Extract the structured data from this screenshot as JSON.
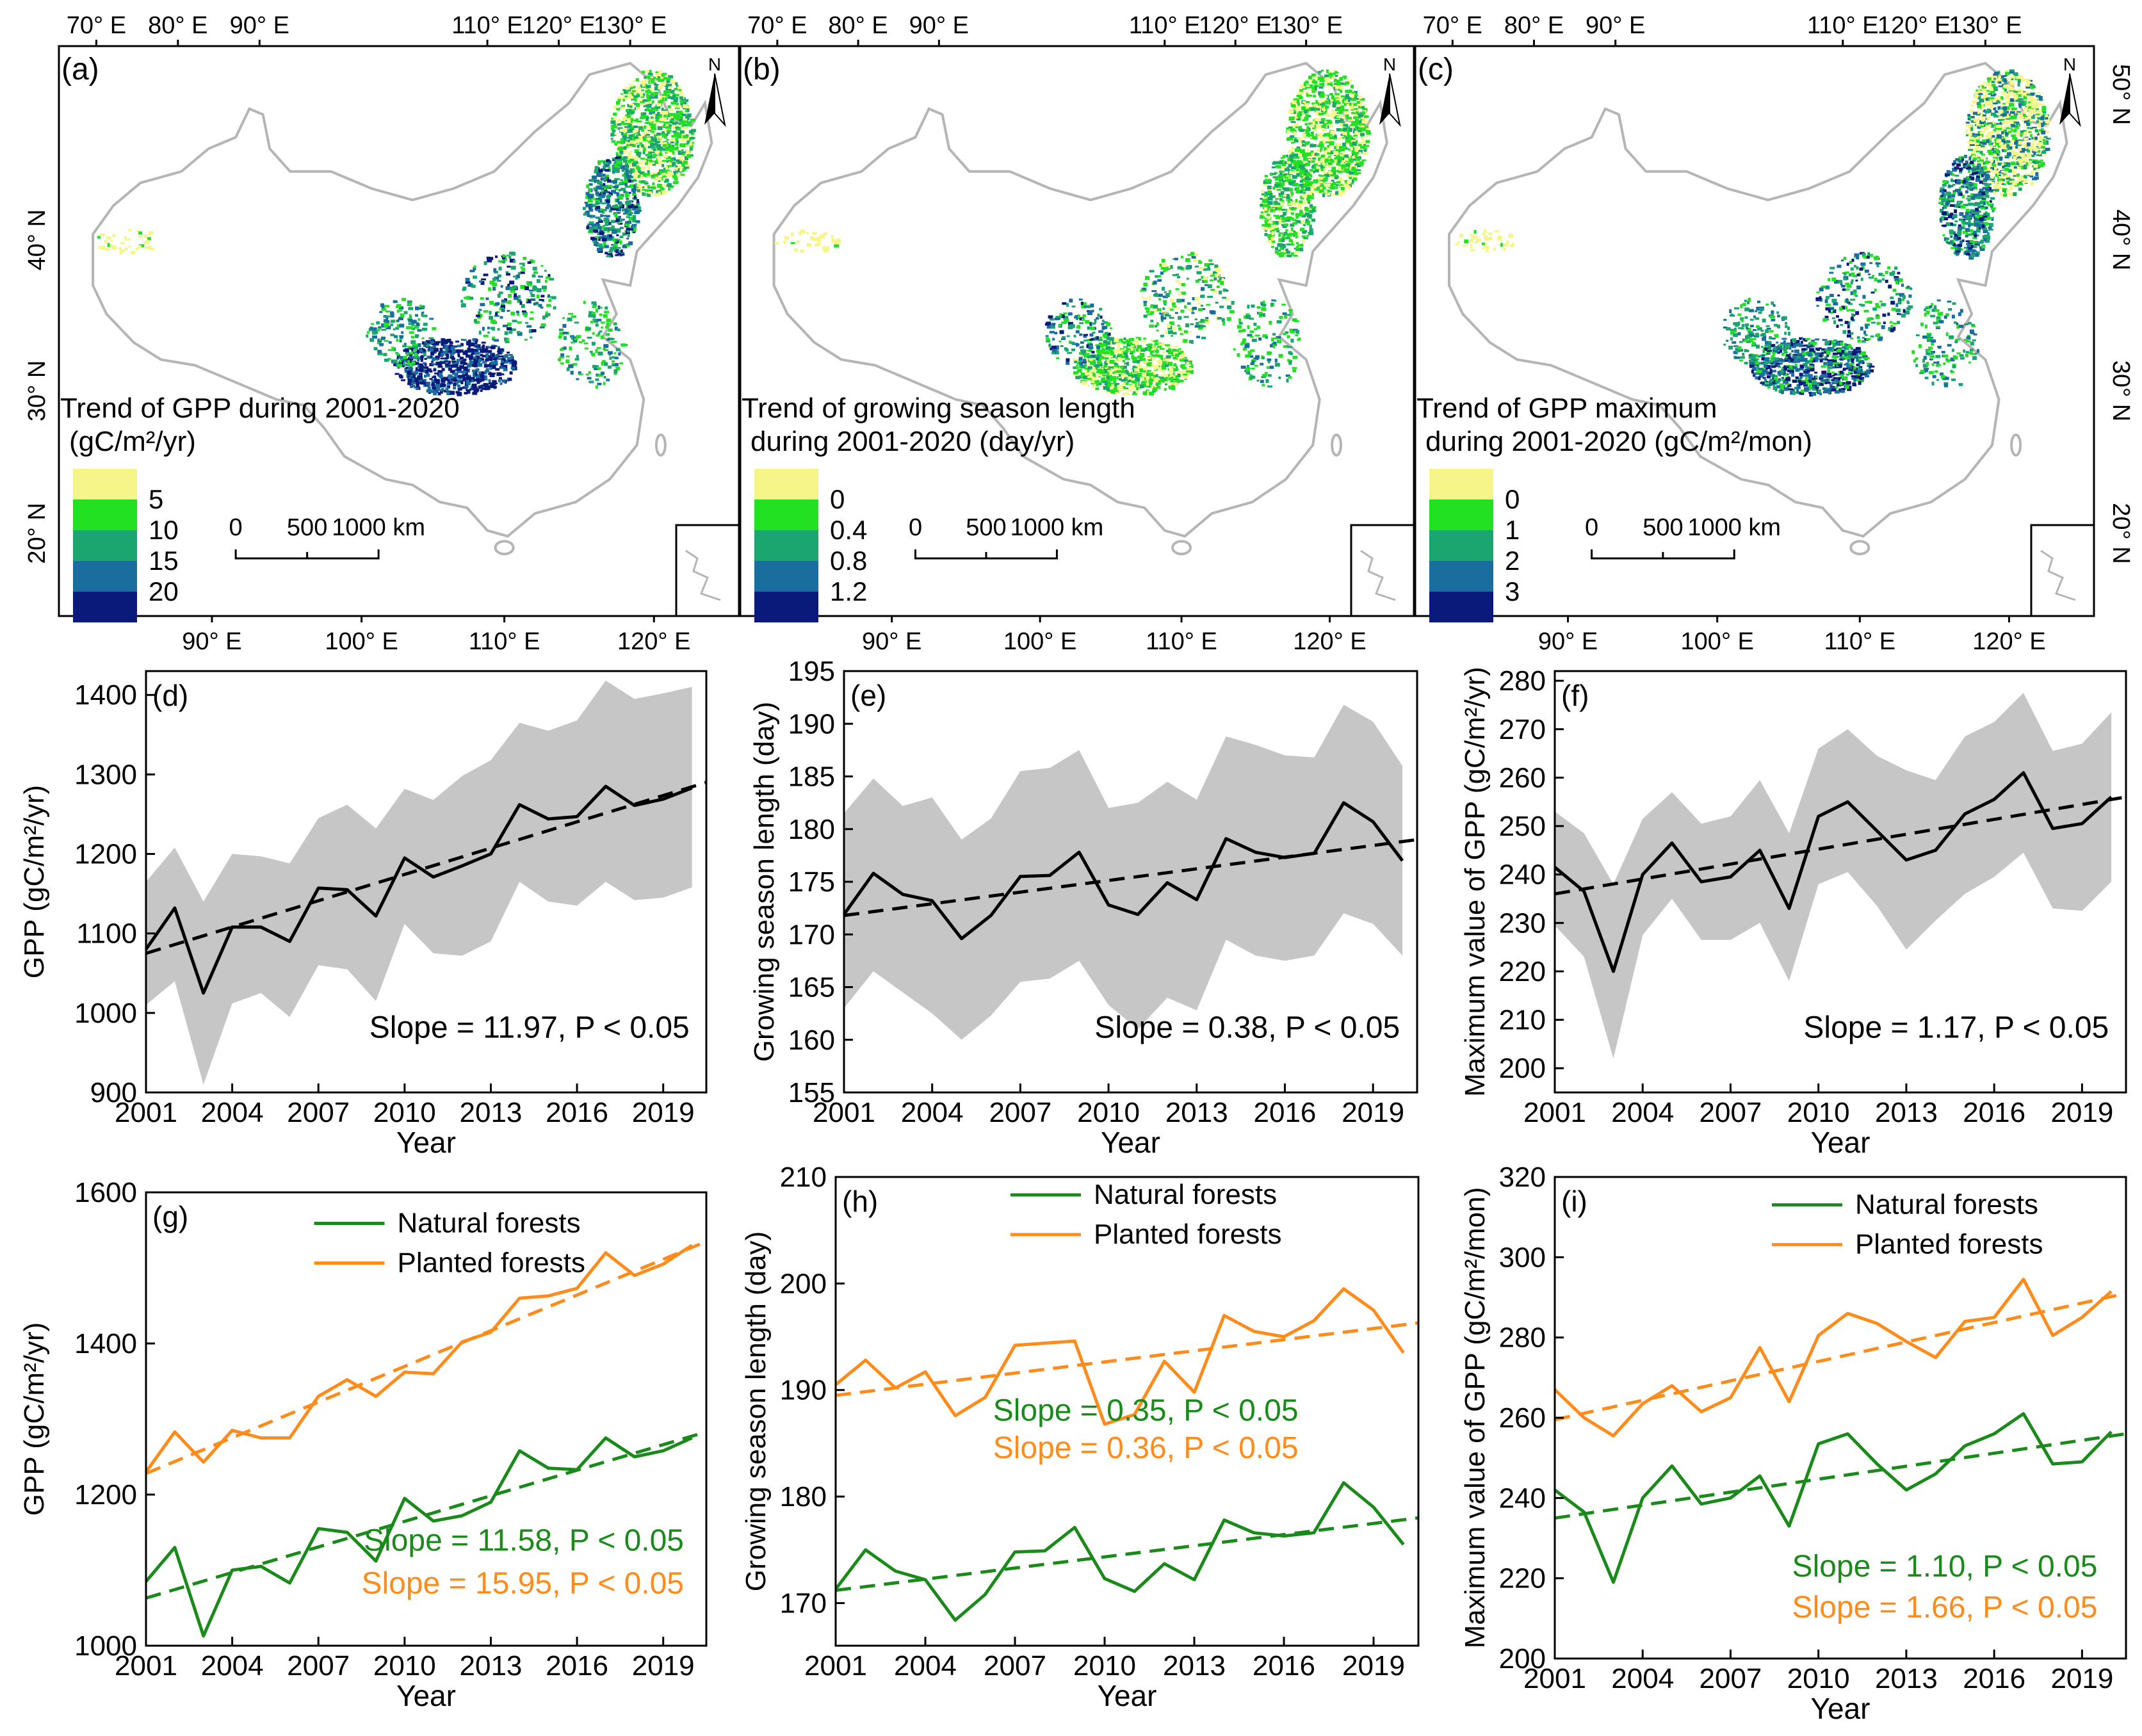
{
  "colors": {
    "bg": "#ffffff",
    "axis": "#000000",
    "band": "#c6c6c6",
    "trend": "#000000",
    "natural": "#1a8a1a",
    "planted": "#ff8c1a",
    "map_outline": "#b5b5b5",
    "legend": [
      "#f5f58a",
      "#22e022",
      "#1aa66e",
      "#1a6e9e",
      "#0a1a7a"
    ]
  },
  "maps": [
    {
      "id": "a",
      "panel_label": "(a)",
      "top_ticks": [
        "70° E",
        "80° E",
        "90° E",
        "110° E",
        "120° E",
        "130° E"
      ],
      "bottom_ticks": [
        "90° E",
        "100° E",
        "110° E",
        "120° E"
      ],
      "left_ticks": [
        "40° N",
        "30° N",
        "20° N"
      ],
      "right_ticks": [],
      "north": "N",
      "legend_title_1": "Trend of GPP during 2001-2020",
      "legend_title_2": "(gC/m²/yr)",
      "legend_values": [
        "5",
        "10",
        "15",
        "20"
      ],
      "scale_labels": [
        "0",
        "500",
        "1000 km"
      ]
    },
    {
      "id": "b",
      "panel_label": "(b)",
      "top_ticks": [
        "70° E",
        "80° E",
        "90° E",
        "110° E",
        "120° E",
        "130° E"
      ],
      "bottom_ticks": [
        "90° E",
        "100° E",
        "110° E",
        "120° E"
      ],
      "left_ticks": [],
      "right_ticks": [],
      "north": "N",
      "legend_title_1": "Trend of growing season length",
      "legend_title_2": "during 2001-2020 (day/yr)",
      "legend_values": [
        "0",
        "0.4",
        "0.8",
        "1.2"
      ],
      "scale_labels": [
        "0",
        "500",
        "1000 km"
      ]
    },
    {
      "id": "c",
      "panel_label": "(c)",
      "top_ticks": [
        "70° E",
        "80° E",
        "90° E",
        "110° E",
        "120° E",
        "130° E"
      ],
      "bottom_ticks": [
        "90° E",
        "100° E",
        "110° E",
        "120° E"
      ],
      "left_ticks": [],
      "right_ticks": [
        "50° N",
        "40° N",
        "30° N",
        "20° N"
      ],
      "north": "N",
      "legend_title_1": "Trend of GPP maximum",
      "legend_title_2": "during 2001-2020 (gC/m²/mon)",
      "legend_values": [
        "0",
        "1",
        "2",
        "3"
      ],
      "scale_labels": [
        "0",
        "500",
        "1000 km"
      ]
    }
  ],
  "chart_data": [
    {
      "id": "d",
      "type": "line",
      "panel_label": "(d)",
      "xlabel": "Year",
      "ylabel": "GPP (gC/m²/yr)",
      "xlim": [
        2001,
        2020.5
      ],
      "ylim": [
        900,
        1430
      ],
      "xticks": [
        2001,
        2004,
        2007,
        2010,
        2013,
        2016,
        2019
      ],
      "yticks": [
        900,
        1000,
        1100,
        1200,
        1300,
        1400
      ],
      "x": [
        2001,
        2002,
        2003,
        2004,
        2005,
        2006,
        2007,
        2008,
        2009,
        2010,
        2011,
        2012,
        2013,
        2014,
        2015,
        2016,
        2017,
        2018,
        2019,
        2020
      ],
      "series": [
        {
          "name": "GPP",
          "values": [
            1080,
            1132,
            1025,
            1108,
            1108,
            1090,
            1157,
            1155,
            1122,
            1195,
            1171,
            1185,
            1200,
            1262,
            1244,
            1247,
            1285,
            1261,
            1269,
            1283
          ]
        }
      ],
      "band_upper": [
        1165,
        1208,
        1140,
        1200,
        1197,
        1188,
        1245,
        1262,
        1232,
        1282,
        1268,
        1298,
        1318,
        1365,
        1355,
        1368,
        1418,
        1395,
        1402,
        1410
      ],
      "band_lower": [
        1010,
        1040,
        910,
        1012,
        1025,
        995,
        1060,
        1055,
        1015,
        1112,
        1075,
        1072,
        1090,
        1165,
        1140,
        1135,
        1165,
        1142,
        1145,
        1158
      ],
      "trend": [
        1075,
        1290
      ],
      "annotations": [
        {
          "text": "Slope = 11.97, P < 0.05",
          "color": "#000000"
        }
      ]
    },
    {
      "id": "e",
      "type": "line",
      "panel_label": "(e)",
      "xlabel": "Year",
      "ylabel": "Growing season length (day)",
      "xlim": [
        2001,
        2020.5
      ],
      "ylim": [
        155,
        195
      ],
      "xticks": [
        2001,
        2004,
        2007,
        2010,
        2013,
        2016,
        2019
      ],
      "yticks": [
        155,
        160,
        165,
        170,
        175,
        180,
        185,
        190,
        195
      ],
      "x": [
        2001,
        2002,
        2003,
        2004,
        2005,
        2006,
        2007,
        2008,
        2009,
        2010,
        2011,
        2012,
        2013,
        2014,
        2015,
        2016,
        2017,
        2018,
        2019,
        2020
      ],
      "series": [
        {
          "name": "Growing season length",
          "values": [
            171.9,
            175.8,
            173.8,
            173.2,
            169.6,
            171.8,
            175.5,
            175.6,
            177.8,
            172.8,
            171.9,
            174.9,
            173.3,
            179.1,
            177.8,
            177.3,
            177.7,
            182.5,
            180.7,
            177.0
          ]
        }
      ],
      "band_upper": [
        181.5,
        184.8,
        182.2,
        183.0,
        179.0,
        181.0,
        185.5,
        185.8,
        187.5,
        182.0,
        182.5,
        184.5,
        182.8,
        188.8,
        188.0,
        187.0,
        186.8,
        191.8,
        190.2,
        186.0
      ],
      "band_lower": [
        163.0,
        166.5,
        164.5,
        162.5,
        160.0,
        162.3,
        165.5,
        165.8,
        167.5,
        163.3,
        161.0,
        164.0,
        162.8,
        169.5,
        168.0,
        167.5,
        168.0,
        172.0,
        171.0,
        168.0
      ],
      "trend": [
        171.8,
        179.0
      ],
      "annotations": [
        {
          "text": "Slope = 0.38, P < 0.05",
          "color": "#000000"
        }
      ]
    },
    {
      "id": "f",
      "type": "line",
      "panel_label": "(f)",
      "xlabel": "Year",
      "ylabel": "Maximum value of GPP (gC/m²/yr)",
      "xlim": [
        2001,
        2020.5
      ],
      "ylim": [
        195,
        282
      ],
      "xticks": [
        2001,
        2004,
        2007,
        2010,
        2013,
        2016,
        2019
      ],
      "yticks": [
        200,
        210,
        220,
        230,
        240,
        250,
        260,
        270,
        280
      ],
      "x": [
        2001,
        2002,
        2003,
        2004,
        2005,
        2006,
        2007,
        2008,
        2009,
        2010,
        2011,
        2012,
        2013,
        2014,
        2015,
        2016,
        2017,
        2018,
        2019,
        2020
      ],
      "series": [
        {
          "name": "GPP maximum",
          "values": [
            241.5,
            236.5,
            220.0,
            240.0,
            246.5,
            238.5,
            239.5,
            245.0,
            233.0,
            252.0,
            255.0,
            249.0,
            243.0,
            245.0,
            252.5,
            255.5,
            261.0,
            249.5,
            250.5,
            256.0
          ]
        }
      ],
      "band_upper": [
        253.0,
        248.5,
        238.0,
        251.5,
        257.0,
        250.5,
        252.0,
        259.5,
        248.5,
        266.0,
        270.0,
        264.5,
        261.5,
        259.5,
        268.5,
        271.5,
        277.5,
        265.5,
        267.0,
        273.5
      ],
      "band_lower": [
        229.5,
        223.0,
        202.0,
        227.5,
        235.0,
        226.5,
        226.5,
        230.0,
        218.0,
        238.0,
        240.5,
        233.5,
        224.5,
        230.5,
        236.0,
        239.5,
        244.5,
        233.0,
        232.5,
        238.5
      ],
      "trend": [
        236.0,
        256.0
      ],
      "annotations": [
        {
          "text": "Slope = 1.17, P < 0.05",
          "color": "#000000"
        }
      ]
    },
    {
      "id": "g",
      "type": "line",
      "panel_label": "(g)",
      "xlabel": "Year",
      "ylabel": "GPP (gC/m²/yr)",
      "xlim": [
        2001,
        2020.5
      ],
      "ylim": [
        1000,
        1600
      ],
      "xticks": [
        2001,
        2004,
        2007,
        2010,
        2013,
        2016,
        2019
      ],
      "yticks": [
        1000,
        1200,
        1400,
        1600
      ],
      "x": [
        2001,
        2002,
        2003,
        2004,
        2005,
        2006,
        2007,
        2008,
        2009,
        2010,
        2011,
        2012,
        2013,
        2014,
        2015,
        2016,
        2017,
        2018,
        2019,
        2020
      ],
      "series": [
        {
          "name": "Natural forests",
          "color": "#1a8a1a",
          "values": [
            1085,
            1130,
            1013,
            1100,
            1105,
            1083,
            1155,
            1150,
            1112,
            1195,
            1165,
            1172,
            1190,
            1258,
            1235,
            1233,
            1275,
            1250,
            1258,
            1275
          ],
          "trend": [
            1063,
            1283
          ]
        },
        {
          "name": "Planted forests",
          "color": "#ff8c1a",
          "values": [
            1230,
            1283,
            1243,
            1285,
            1275,
            1275,
            1330,
            1352,
            1330,
            1362,
            1360,
            1402,
            1415,
            1460,
            1463,
            1473,
            1520,
            1490,
            1505,
            1530
          ],
          "trend": [
            1228,
            1535
          ]
        }
      ],
      "legend": [
        "Natural forests",
        "Planted forests"
      ],
      "annotations": [
        {
          "text": "Slope = 11.58, P < 0.05",
          "color": "#1a8a1a"
        },
        {
          "text": "Slope = 15.95, P < 0.05",
          "color": "#ff8c1a"
        }
      ]
    },
    {
      "id": "h",
      "type": "line",
      "panel_label": "(h)",
      "xlabel": "Year",
      "ylabel": "Growing season length (day)",
      "xlim": [
        2001,
        2020.5
      ],
      "ylim": [
        166,
        210
      ],
      "xticks": [
        2001,
        2004,
        2007,
        2010,
        2013,
        2016,
        2019
      ],
      "yticks": [
        170,
        180,
        190,
        200,
        210
      ],
      "x": [
        2001,
        2002,
        2003,
        2004,
        2005,
        2006,
        2007,
        2008,
        2009,
        2010,
        2011,
        2012,
        2013,
        2014,
        2015,
        2016,
        2017,
        2018,
        2019,
        2020
      ],
      "series": [
        {
          "name": "Natural forests",
          "color": "#1a8a1a",
          "values": [
            171.3,
            175.0,
            173.0,
            172.2,
            168.4,
            170.8,
            174.8,
            174.9,
            177.1,
            172.3,
            171.1,
            173.7,
            172.2,
            177.8,
            176.6,
            176.3,
            176.6,
            181.3,
            179.0,
            175.5
          ],
          "trend": [
            171.2,
            178.0
          ]
        },
        {
          "name": "Planted forests",
          "color": "#ff8c1a",
          "values": [
            190.5,
            192.8,
            190.2,
            191.7,
            187.6,
            189.3,
            194.2,
            194.4,
            194.6,
            186.8,
            187.7,
            192.7,
            189.8,
            197.0,
            195.5,
            195.0,
            196.5,
            199.5,
            197.5,
            193.5
          ],
          "trend": [
            189.5,
            196.3
          ]
        }
      ],
      "legend": [
        "Natural forests",
        "Planted forests"
      ],
      "annotations": [
        {
          "text": "Slope = 0.35, P < 0.05",
          "color": "#1a8a1a"
        },
        {
          "text": "Slope = 0.36, P < 0.05",
          "color": "#ff8c1a"
        }
      ]
    },
    {
      "id": "i",
      "type": "line",
      "panel_label": "(i)",
      "xlabel": "Year",
      "ylabel": "Maximum value of GPP (gC/m²/mon)",
      "xlim": [
        2001,
        2020.5
      ],
      "ylim": [
        200,
        320
      ],
      "xticks": [
        2001,
        2004,
        2007,
        2010,
        2013,
        2016,
        2019
      ],
      "yticks": [
        200,
        220,
        240,
        260,
        280,
        300,
        320
      ],
      "x": [
        2001,
        2002,
        2003,
        2004,
        2005,
        2006,
        2007,
        2008,
        2009,
        2010,
        2011,
        2012,
        2013,
        2014,
        2015,
        2016,
        2017,
        2018,
        2019,
        2020
      ],
      "series": [
        {
          "name": "Natural forests",
          "color": "#1a8a1a",
          "values": [
            242.0,
            236.5,
            219.0,
            240.0,
            248.0,
            238.5,
            240.0,
            245.5,
            233.0,
            253.5,
            256.0,
            248.5,
            242.0,
            246.0,
            253.0,
            256.0,
            261.0,
            248.5,
            249.0,
            256.5
          ],
          "trend": [
            235.0,
            256.0
          ]
        },
        {
          "name": "Planted forests",
          "color": "#ff8c1a",
          "values": [
            267.0,
            260.0,
            255.5,
            263.5,
            268.0,
            261.5,
            265.0,
            277.5,
            264.0,
            280.5,
            286.0,
            283.5,
            279.0,
            275.0,
            284.0,
            285.0,
            294.5,
            280.5,
            285.0,
            291.5
          ],
          "trend": [
            259.5,
            291.0
          ]
        }
      ],
      "legend": [
        "Natural forests",
        "Planted forests"
      ],
      "annotations": [
        {
          "text": "Slope = 1.10, P < 0.05",
          "color": "#1a8a1a"
        },
        {
          "text": "Slope = 1.66, P < 0.05",
          "color": "#ff8c1a"
        }
      ]
    }
  ]
}
